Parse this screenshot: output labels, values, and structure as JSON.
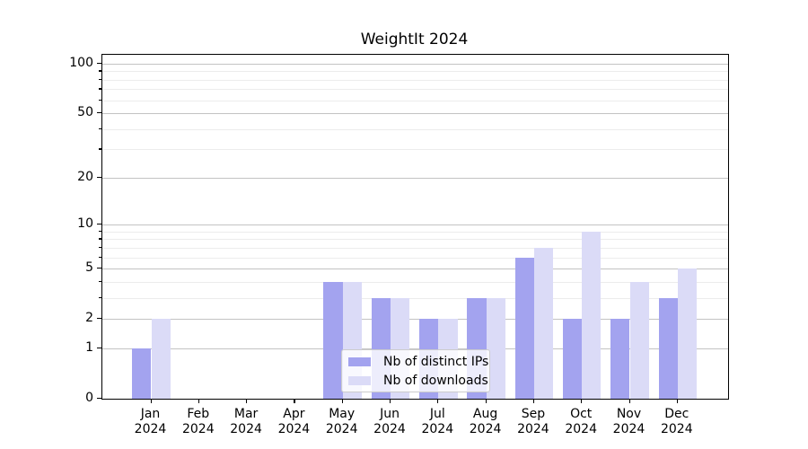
{
  "title": "WeightIt 2024",
  "legend": {
    "items": [
      {
        "label": "Nb of distinct IPs",
        "color": "#a3a3ef"
      },
      {
        "label": "Nb of downloads",
        "color": "#dbdbf7"
      }
    ]
  },
  "colors": {
    "series_dark": "#a3a3ef",
    "series_light": "#dbdbf7",
    "grid_major": "#c3c3c3",
    "grid_minor": "#ececec",
    "axis": "#000000",
    "background": "#ffffff"
  },
  "chart_data": {
    "type": "bar",
    "title": "WeightIt 2024",
    "categories": [
      "Jan",
      "Feb",
      "Mar",
      "Apr",
      "May",
      "Jun",
      "Jul",
      "Aug",
      "Sep",
      "Oct",
      "Nov",
      "Dec"
    ],
    "year_label": "2024",
    "series": [
      {
        "name": "Nb of distinct IPs",
        "color": "#a3a3ef",
        "values": [
          1,
          0,
          0,
          0,
          4,
          3,
          2,
          3,
          6,
          2,
          2,
          3
        ]
      },
      {
        "name": "Nb of downloads",
        "color": "#dbdbf7",
        "values": [
          2,
          0,
          0,
          0,
          4,
          3,
          2,
          3,
          7,
          9,
          4,
          5
        ]
      }
    ],
    "xlabel": "",
    "ylabel": "",
    "yscale": "log1p",
    "ylim": [
      0,
      115
    ],
    "y_ticks": [
      0,
      1,
      2,
      5,
      10,
      20,
      50,
      100
    ],
    "y_ticks_minor": [
      3,
      4,
      6,
      7,
      8,
      9,
      30,
      40,
      60,
      70,
      80,
      90
    ],
    "grid": true,
    "legend_position": "lower center"
  }
}
